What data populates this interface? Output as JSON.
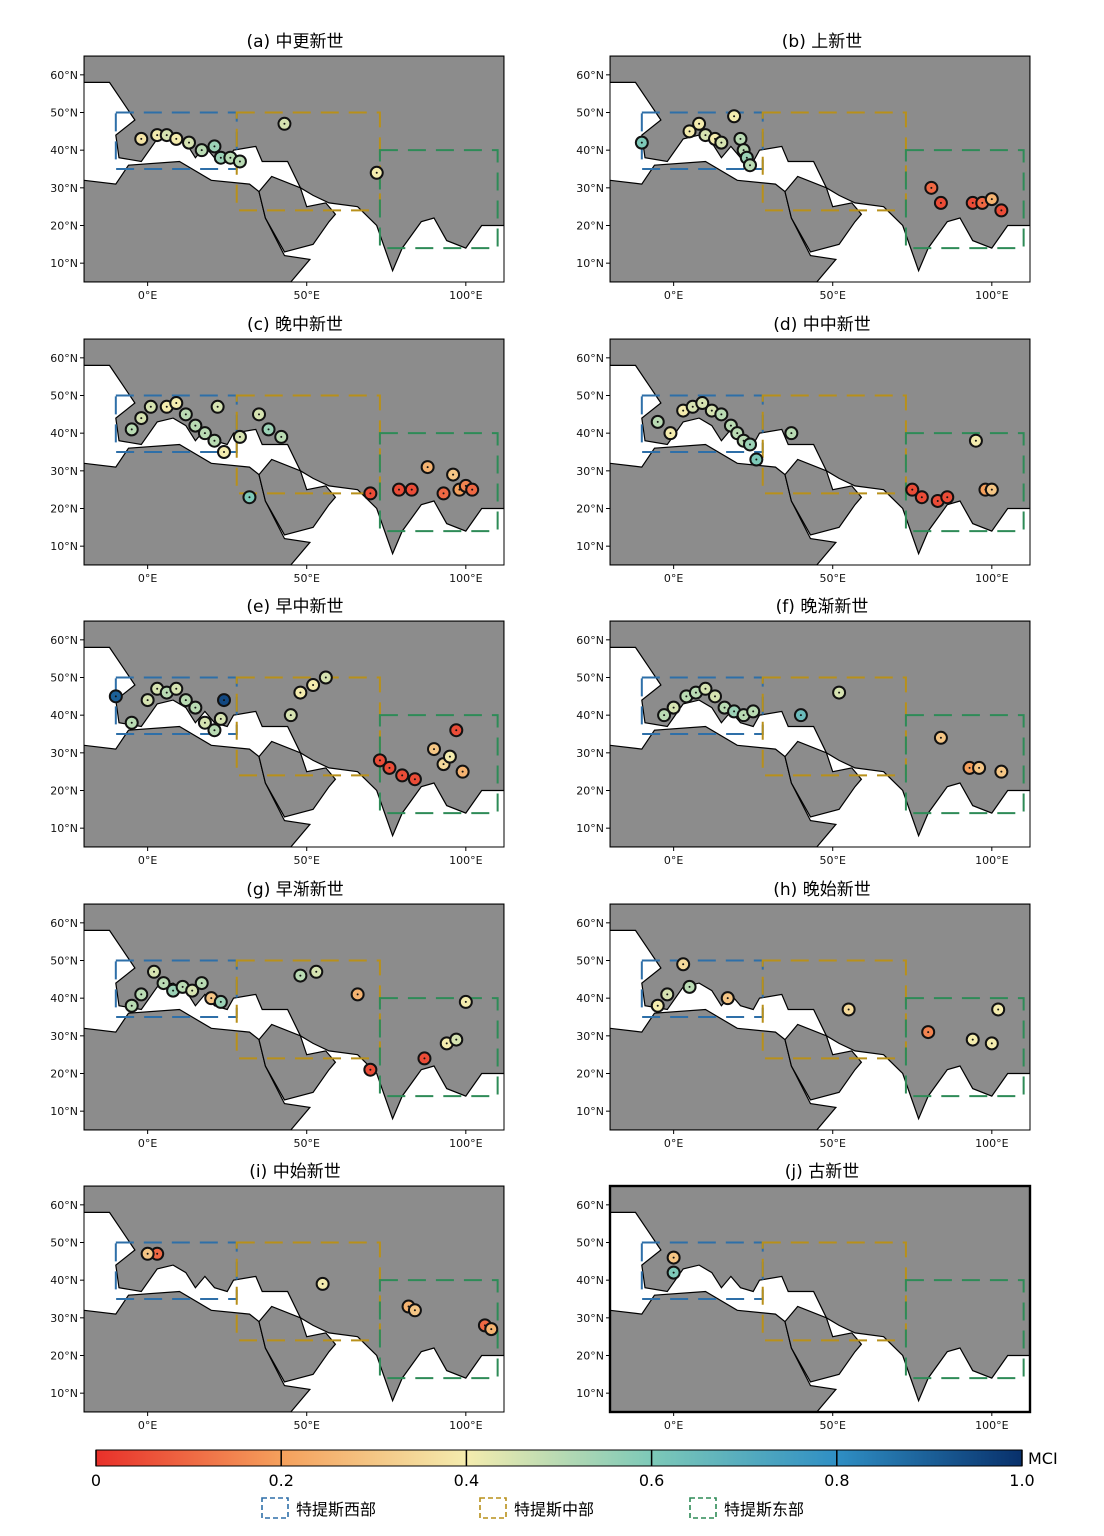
{
  "panels": [
    {
      "id": "a",
      "title": "(a) 中更新世",
      "scale": "medium",
      "points": [
        [
          60,
          "N"
        ],
        [
          50,
          "N"
        ],
        [
          40,
          "N"
        ],
        [
          30,
          "N"
        ]
      ]
    },
    {
      "id": "b",
      "title": "(b) 上新世"
    },
    {
      "id": "c",
      "title": "(c) 晚中新世"
    },
    {
      "id": "d",
      "title": "(d) 中中新世"
    },
    {
      "id": "e",
      "title": "(e) 早中新世"
    },
    {
      "id": "f",
      "title": "(f) 晚渐新世"
    },
    {
      "id": "g",
      "title": "(g) 早渐新世"
    },
    {
      "id": "h",
      "title": "(h) 晚始新世"
    },
    {
      "id": "i",
      "title": "(i) 中始新世"
    },
    {
      "id": "j",
      "title": "(j) 古新世"
    }
  ],
  "axes": {
    "lat_ticks": [
      "60°N",
      "50°N",
      "40°N",
      "30°N",
      "20°N",
      "10°N"
    ],
    "lon_ticks": [
      "0°E",
      "50°E",
      "100°E"
    ],
    "lat_values": [
      60,
      50,
      40,
      30,
      20,
      10
    ],
    "lon_values": [
      0,
      50,
      100
    ],
    "lon_range": [
      -20,
      112
    ],
    "lat_range": [
      5,
      65
    ]
  },
  "regions": [
    {
      "name": "特提斯西部",
      "color": "#2e6fa8",
      "lon": [
        -10,
        28
      ],
      "lat": [
        35,
        50
      ]
    },
    {
      "name": "特提斯中部",
      "color": "#b8901a",
      "lon": [
        28,
        73
      ],
      "lat": [
        24,
        50
      ]
    },
    {
      "name": "特提斯东部",
      "color": "#2e8b57",
      "lon": [
        73,
        110
      ],
      "lat": [
        14,
        40
      ]
    }
  ],
  "colorbar": {
    "label": "MCI",
    "min": 0.0,
    "max": 1.0,
    "tick_labels": [
      "0",
      "0.2",
      "0.4",
      "0.6",
      "0.8",
      "1.0"
    ],
    "tick_values": [
      0,
      0.2,
      0.4,
      0.6,
      0.8,
      1.0
    ],
    "colors": [
      "#e8302a",
      "#f5a05c",
      "#f4ecae",
      "#7dc9b8",
      "#2f8fc4",
      "#08306b"
    ]
  },
  "colors": {
    "land": "#8c8c8c",
    "ocean": "#ffffff",
    "coast": "#000000"
  },
  "sites": {
    "a": [
      [
        -2,
        43,
        0.38
      ],
      [
        3,
        44,
        0.4
      ],
      [
        6,
        44,
        0.45
      ],
      [
        9,
        43,
        0.4
      ],
      [
        13,
        42,
        0.45
      ],
      [
        17,
        40,
        0.5
      ],
      [
        21,
        41,
        0.55
      ],
      [
        23,
        38,
        0.55
      ],
      [
        26,
        38,
        0.5
      ],
      [
        29,
        37,
        0.5
      ],
      [
        43,
        47,
        0.45
      ],
      [
        72,
        34,
        0.4
      ]
    ],
    "b": [
      [
        -10,
        42,
        0.6
      ],
      [
        5,
        45,
        0.4
      ],
      [
        8,
        47,
        0.4
      ],
      [
        10,
        44,
        0.45
      ],
      [
        13,
        43,
        0.4
      ],
      [
        15,
        42,
        0.45
      ],
      [
        19,
        49,
        0.4
      ],
      [
        21,
        43,
        0.5
      ],
      [
        22,
        40,
        0.5
      ],
      [
        23,
        38,
        0.55
      ],
      [
        24,
        36,
        0.5
      ],
      [
        81,
        30,
        0.1
      ],
      [
        84,
        26,
        0.05
      ],
      [
        94,
        26,
        0.05
      ],
      [
        97,
        26,
        0.1
      ],
      [
        100,
        27,
        0.25
      ],
      [
        103,
        24,
        0.05
      ]
    ],
    "c": [
      [
        -5,
        41,
        0.5
      ],
      [
        -2,
        44,
        0.45
      ],
      [
        1,
        47,
        0.45
      ],
      [
        6,
        47,
        0.4
      ],
      [
        9,
        48,
        0.4
      ],
      [
        12,
        45,
        0.5
      ],
      [
        15,
        42,
        0.5
      ],
      [
        18,
        40,
        0.5
      ],
      [
        21,
        38,
        0.5
      ],
      [
        22,
        47,
        0.45
      ],
      [
        24,
        35,
        0.4
      ],
      [
        29,
        39,
        0.45
      ],
      [
        32,
        23,
        0.6
      ],
      [
        35,
        45,
        0.45
      ],
      [
        38,
        41,
        0.55
      ],
      [
        42,
        39,
        0.5
      ],
      [
        70,
        24,
        0.05
      ],
      [
        79,
        25,
        0.05
      ],
      [
        83,
        25,
        0.05
      ],
      [
        88,
        31,
        0.25
      ],
      [
        93,
        24,
        0.1
      ],
      [
        96,
        29,
        0.3
      ],
      [
        98,
        25,
        0.2
      ],
      [
        100,
        26,
        0.15
      ],
      [
        102,
        25,
        0.1
      ]
    ],
    "d": [
      [
        -5,
        43,
        0.5
      ],
      [
        -1,
        40,
        0.4
      ],
      [
        3,
        46,
        0.4
      ],
      [
        6,
        47,
        0.45
      ],
      [
        9,
        48,
        0.45
      ],
      [
        12,
        46,
        0.45
      ],
      [
        15,
        45,
        0.5
      ],
      [
        18,
        42,
        0.5
      ],
      [
        20,
        40,
        0.5
      ],
      [
        22,
        38,
        0.5
      ],
      [
        24,
        37,
        0.55
      ],
      [
        26,
        33,
        0.6
      ],
      [
        37,
        40,
        0.5
      ],
      [
        75,
        25,
        0.05
      ],
      [
        78,
        23,
        0.05
      ],
      [
        83,
        22,
        0.05
      ],
      [
        86,
        23,
        0.05
      ],
      [
        95,
        38,
        0.4
      ],
      [
        98,
        25,
        0.2
      ],
      [
        100,
        25,
        0.3
      ]
    ],
    "e": [
      [
        -10,
        45,
        0.9
      ],
      [
        -5,
        38,
        0.5
      ],
      [
        0,
        44,
        0.45
      ],
      [
        3,
        47,
        0.45
      ],
      [
        6,
        46,
        0.5
      ],
      [
        9,
        47,
        0.45
      ],
      [
        12,
        44,
        0.5
      ],
      [
        15,
        42,
        0.5
      ],
      [
        18,
        38,
        0.45
      ],
      [
        21,
        36,
        0.5
      ],
      [
        23,
        39,
        0.45
      ],
      [
        24,
        44,
        0.95
      ],
      [
        45,
        40,
        0.45
      ],
      [
        48,
        46,
        0.4
      ],
      [
        52,
        48,
        0.4
      ],
      [
        56,
        50,
        0.45
      ],
      [
        73,
        28,
        0.05
      ],
      [
        76,
        26,
        0.05
      ],
      [
        80,
        24,
        0.05
      ],
      [
        84,
        23,
        0.05
      ],
      [
        90,
        31,
        0.3
      ],
      [
        93,
        27,
        0.35
      ],
      [
        95,
        29,
        0.4
      ],
      [
        97,
        36,
        0.05
      ],
      [
        99,
        25,
        0.25
      ]
    ],
    "f": [
      [
        -3,
        40,
        0.5
      ],
      [
        0,
        42,
        0.45
      ],
      [
        4,
        45,
        0.5
      ],
      [
        7,
        46,
        0.5
      ],
      [
        10,
        47,
        0.45
      ],
      [
        13,
        45,
        0.45
      ],
      [
        16,
        42,
        0.5
      ],
      [
        19,
        41,
        0.55
      ],
      [
        22,
        40,
        0.5
      ],
      [
        25,
        41,
        0.5
      ],
      [
        40,
        40,
        0.65
      ],
      [
        52,
        46,
        0.45
      ],
      [
        84,
        34,
        0.3
      ],
      [
        93,
        26,
        0.2
      ],
      [
        96,
        26,
        0.3
      ],
      [
        103,
        25,
        0.3
      ]
    ],
    "g": [
      [
        -5,
        38,
        0.5
      ],
      [
        -2,
        41,
        0.5
      ],
      [
        2,
        47,
        0.45
      ],
      [
        5,
        44,
        0.5
      ],
      [
        8,
        42,
        0.55
      ],
      [
        11,
        43,
        0.5
      ],
      [
        14,
        42,
        0.45
      ],
      [
        17,
        44,
        0.5
      ],
      [
        20,
        40,
        0.3
      ],
      [
        23,
        39,
        0.55
      ],
      [
        48,
        46,
        0.5
      ],
      [
        53,
        47,
        0.45
      ],
      [
        66,
        41,
        0.25
      ],
      [
        70,
        21,
        0.05
      ],
      [
        87,
        24,
        0.05
      ],
      [
        94,
        28,
        0.4
      ],
      [
        97,
        29,
        0.45
      ],
      [
        100,
        39,
        0.4
      ]
    ],
    "h": [
      [
        -5,
        38,
        0.4
      ],
      [
        -2,
        41,
        0.45
      ],
      [
        3,
        49,
        0.35
      ],
      [
        5,
        43,
        0.5
      ],
      [
        17,
        40,
        0.3
      ],
      [
        55,
        37,
        0.35
      ],
      [
        80,
        31,
        0.15
      ],
      [
        94,
        29,
        0.4
      ],
      [
        100,
        28,
        0.4
      ],
      [
        102,
        37,
        0.4
      ]
    ],
    "i": [
      [
        3,
        47,
        0.1
      ],
      [
        0,
        47,
        0.3
      ],
      [
        55,
        39,
        0.4
      ],
      [
        82,
        33,
        0.25
      ],
      [
        84,
        32,
        0.3
      ],
      [
        106,
        28,
        0.1
      ],
      [
        108,
        27,
        0.25
      ]
    ],
    "j": [
      [
        0,
        46,
        0.3
      ],
      [
        0,
        42,
        0.6
      ]
    ]
  }
}
